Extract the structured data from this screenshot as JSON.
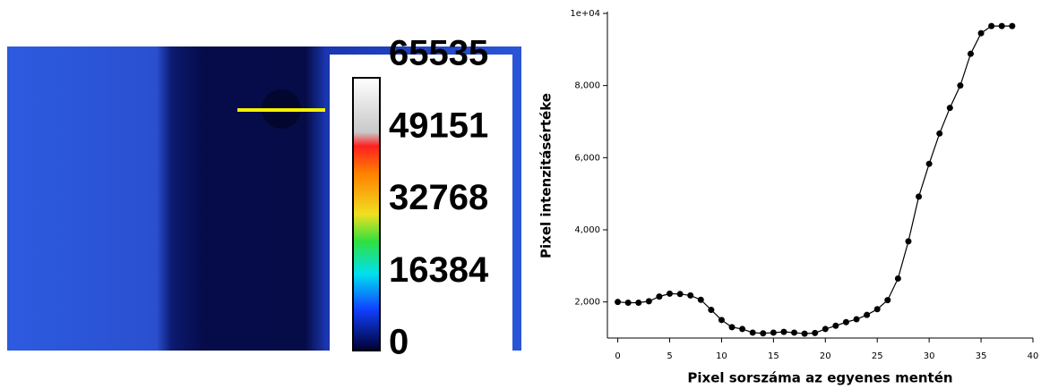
{
  "chart_data": [
    {
      "type": "image",
      "clim": [
        0,
        65535
      ],
      "cticks": [
        0,
        16384,
        32768,
        49151,
        65535
      ]
    },
    {
      "type": "line",
      "xlabel": "Pixel sorszáma az egyenes mentén",
      "ylabel": "Pixel intenzitásértéke",
      "x": [
        0,
        1,
        2,
        3,
        4,
        5,
        6,
        7,
        8,
        9,
        10,
        11,
        12,
        13,
        14,
        15,
        16,
        17,
        18,
        19,
        20,
        21,
        22,
        23,
        24,
        25,
        26,
        27,
        28,
        29,
        30,
        31,
        32,
        33,
        34,
        35,
        36,
        37,
        38
      ],
      "values": [
        2000,
        1980,
        1980,
        2020,
        2150,
        2230,
        2220,
        2180,
        2060,
        1780,
        1500,
        1300,
        1250,
        1150,
        1130,
        1150,
        1170,
        1150,
        1120,
        1140,
        1250,
        1340,
        1440,
        1520,
        1640,
        1800,
        2050,
        2650,
        3680,
        4920,
        5830,
        6670,
        7380,
        8000,
        8880,
        9450,
        9650,
        9650,
        9650
      ],
      "color": "#000000",
      "xlim": [
        -1,
        40
      ],
      "ylim": [
        1000,
        10000
      ],
      "xticks": [
        0,
        5,
        10,
        15,
        20,
        25,
        30,
        35,
        40
      ],
      "yticks": [
        {
          "value": 2000,
          "label": "2,000"
        },
        {
          "value": 4000,
          "label": "4,000"
        },
        {
          "value": 6000,
          "label": "6,000"
        },
        {
          "value": 8000,
          "label": "8,000"
        },
        {
          "value": 10000,
          "label": "1e+04"
        }
      ]
    }
  ]
}
